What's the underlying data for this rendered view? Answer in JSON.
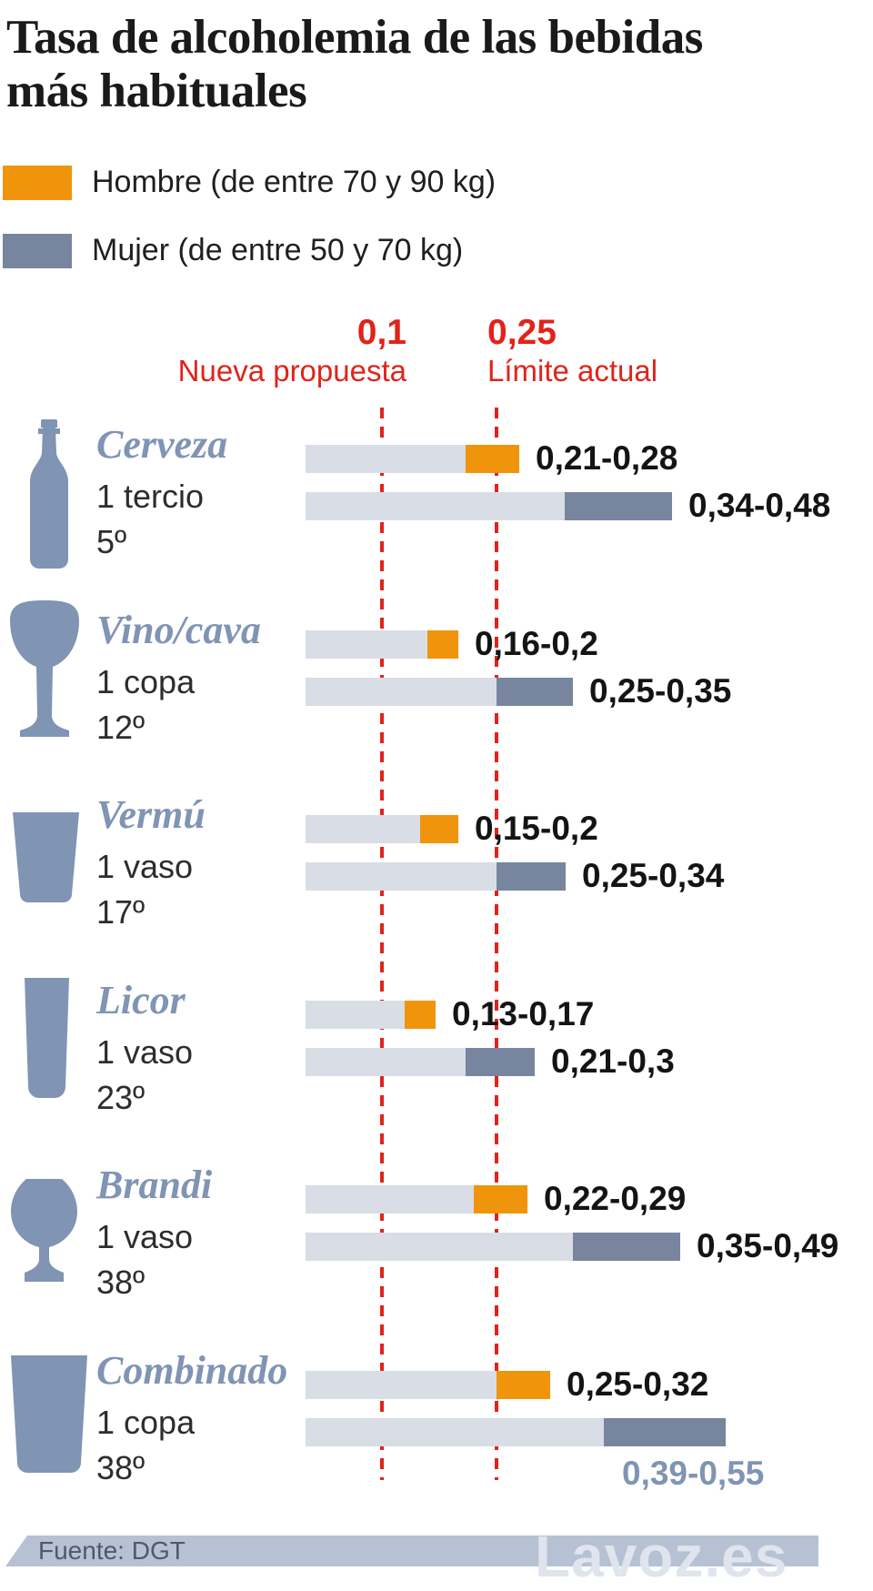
{
  "title_lines": [
    "Tasa de alcoholemia de las bebidas",
    "más habituales"
  ],
  "legend": [
    {
      "label": "Hombre (de entre 70 y 90 kg)",
      "color": "#f0940c"
    },
    {
      "label": "Mujer (de entre 50 y 70 kg)",
      "color": "#77859f"
    }
  ],
  "thresholds": [
    {
      "value": 0.1,
      "value_label": "0,1",
      "name": "Nueva propuesta"
    },
    {
      "value": 0.25,
      "value_label": "0,25",
      "name": "Límite actual"
    }
  ],
  "chart_data": {
    "type": "bar",
    "orientation": "horizontal",
    "title": "Tasa de alcoholemia de las bebidas más habituales",
    "value_axis": {
      "min": 0,
      "max": 0.6,
      "reference_lines": [
        {
          "value": 0.1,
          "label": "0,1",
          "name": "Nueva propuesta"
        },
        {
          "value": 0.25,
          "label": "0,25",
          "name": "Límite actual"
        }
      ]
    },
    "series": [
      {
        "name": "Hombre (de entre 70 y 90 kg)",
        "color": "#f0940c"
      },
      {
        "name": "Mujer (de entre 50 y 70 kg)",
        "color": "#77859f"
      }
    ],
    "categories": [
      {
        "name": "Cerveza",
        "serving": "1 tercio",
        "degrees": "5º",
        "icon": "beer-bottle",
        "hombre": {
          "min": 0.21,
          "max": 0.28,
          "label": "0,21-0,28"
        },
        "mujer": {
          "min": 0.34,
          "max": 0.48,
          "label": "0,34-0,48"
        }
      },
      {
        "name": "Vino/cava",
        "serving": "1 copa",
        "degrees": "12º",
        "icon": "wine-glass",
        "hombre": {
          "min": 0.16,
          "max": 0.2,
          "label": "0,16-0,2"
        },
        "mujer": {
          "min": 0.25,
          "max": 0.35,
          "label": "0,25-0,35"
        }
      },
      {
        "name": "Vermú",
        "serving": "1 vaso",
        "degrees": "17º",
        "icon": "tumbler-short",
        "hombre": {
          "min": 0.15,
          "max": 0.2,
          "label": "0,15-0,2"
        },
        "mujer": {
          "min": 0.25,
          "max": 0.34,
          "label": "0,25-0,34"
        }
      },
      {
        "name": "Licor",
        "serving": "1 vaso",
        "degrees": "23º",
        "icon": "tall-glass-narrow",
        "hombre": {
          "min": 0.13,
          "max": 0.17,
          "label": "0,13-0,17"
        },
        "mujer": {
          "min": 0.21,
          "max": 0.3,
          "label": "0,21-0,3"
        }
      },
      {
        "name": "Brandi",
        "serving": "1 vaso",
        "degrees": "38º",
        "icon": "snifter",
        "hombre": {
          "min": 0.22,
          "max": 0.29,
          "label": "0,22-0,29"
        },
        "mujer": {
          "min": 0.35,
          "max": 0.49,
          "label": "0,35-0,49"
        }
      },
      {
        "name": "Combinado",
        "serving": "1 copa",
        "degrees": "38º",
        "icon": "tall-glass-wide",
        "hombre": {
          "min": 0.25,
          "max": 0.32,
          "label": "0,25-0,32"
        },
        "mujer": {
          "min": 0.39,
          "max": 0.55,
          "label": "0,39-0,55"
        },
        "mujer_label_below": true
      }
    ]
  },
  "footer": {
    "source": "Fuente: DGT",
    "watermark": "Lavoz.es"
  },
  "colors": {
    "hombre": "#f0940c",
    "mujer": "#77859f",
    "bar_base": "#d8dde6",
    "reference_red": "#e1231b",
    "name_blue": "#8094b4",
    "icon_blue": "#8094b4",
    "band": "#b6c1d3",
    "source_text": "#4e5a6a",
    "watermark": "#dfe4ed"
  }
}
